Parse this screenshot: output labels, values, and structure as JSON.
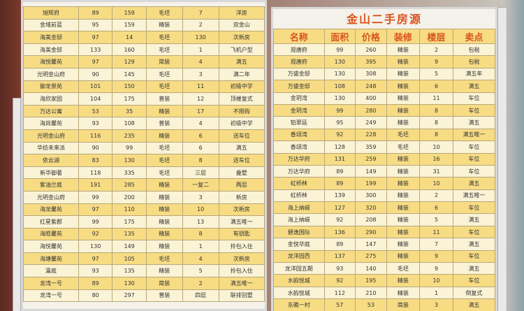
{
  "left_board": {
    "rows": [
      [
        "旭辉府",
        89,
        159,
        "毛坯",
        7,
        "洋房"
      ],
      [
        "金域前蓝",
        95,
        159,
        "精装",
        2,
        "双金山"
      ],
      [
        "海美金邸",
        97,
        14,
        "毛坯",
        130,
        "次新房"
      ],
      [
        "海美金邸",
        133,
        160,
        "毛坯",
        1,
        "飞机户型"
      ],
      [
        "海悦馨苑",
        97,
        129,
        "简装",
        4,
        "满五"
      ],
      [
        "光明金山府",
        90,
        145,
        "毛坯",
        3,
        "满二年"
      ],
      [
        "御龙景苑",
        101,
        150,
        "毛坯",
        11,
        "初级中学"
      ],
      [
        "海欣家园",
        104,
        175,
        "普装",
        12,
        "顶楼复式"
      ],
      [
        "万达公寓",
        53,
        35,
        "精装",
        17,
        "不限购"
      ],
      [
        "海尚馨苑",
        93,
        108,
        "普装",
        4,
        "初级中学"
      ],
      [
        "光明金山府",
        116,
        235,
        "精装",
        6,
        "送车位"
      ],
      [
        "华纺未来派",
        90,
        99,
        "毛坯",
        6,
        "满五"
      ],
      [
        "依云湖",
        83,
        130,
        "毛坯",
        8,
        "送车位"
      ],
      [
        "新华御著",
        118,
        335,
        "毛坯",
        "三层",
        "叠墅"
      ],
      [
        "紫油兰庭",
        191,
        285,
        "精装",
        "一复二",
        "两层"
      ],
      [
        "光明金山府",
        99,
        200,
        "精装",
        3,
        "新房"
      ],
      [
        "海龙馨苑",
        97,
        110,
        "精装",
        10,
        "次新房"
      ],
      [
        "红星紫郡",
        99,
        175,
        "精装",
        13,
        "满五唯一"
      ],
      [
        "海皓馨苑",
        92,
        135,
        "精装",
        8,
        "有钥匙"
      ],
      [
        "海悦馨苑",
        130,
        149,
        "精装",
        1,
        "拎包入住"
      ],
      [
        "海塘馨苑",
        97,
        105,
        "毛坯",
        4,
        "次新房"
      ],
      [
        "瀛庭",
        93,
        135,
        "精装",
        5,
        "拎包入住"
      ],
      [
        "龙湾一号",
        89,
        130,
        "简装",
        2,
        "满五唯一"
      ],
      [
        "龙湾一号",
        80,
        297,
        "普装",
        "四层",
        "联排别墅"
      ]
    ]
  },
  "right_board": {
    "title": "金山二手房源",
    "headers": [
      "名称",
      "面积",
      "价格",
      "装修",
      "楼层",
      "卖点"
    ],
    "rows": [
      [
        "观唐府",
        99,
        260,
        "精装",
        2,
        "包税"
      ],
      [
        "观唐府",
        130,
        395,
        "精装",
        9,
        "包税"
      ],
      [
        "万盛金邸",
        130,
        308,
        "精装",
        5,
        "满五年"
      ],
      [
        "万盛金邸",
        108,
        248,
        "精装",
        6,
        "满五"
      ],
      [
        "金玥湾",
        130,
        400,
        "精装",
        11,
        "车位"
      ],
      [
        "金玥湾",
        99,
        280,
        "精装",
        8,
        "车位"
      ],
      [
        "铂翠廷",
        95,
        249,
        "精装",
        8,
        "满五"
      ],
      [
        "香颂湾",
        92,
        228,
        "毛坯",
        8,
        "满五唯一"
      ],
      [
        "香颂湾",
        128,
        359,
        "毛坯",
        10,
        "车位"
      ],
      [
        "万达华府",
        131,
        259,
        "精装",
        16,
        "车位"
      ],
      [
        "万达华府",
        89,
        149,
        "精装",
        31,
        "车位"
      ],
      [
        "虹桥林",
        89,
        199,
        "精装",
        10,
        "满五"
      ],
      [
        "虹桥林",
        139,
        300,
        "精装",
        2,
        "满五唯一"
      ],
      [
        "海上纳缇",
        127,
        320,
        "精装",
        6,
        "车位"
      ],
      [
        "海上纳缇",
        92,
        208,
        "精装",
        5,
        "满五"
      ],
      [
        "碧逸国际",
        136,
        290,
        "精装",
        11,
        "车位"
      ],
      [
        "金悦华庭",
        89,
        147,
        "精装",
        7,
        "满五"
      ],
      [
        "龙洋园西",
        137,
        275,
        "精装",
        9,
        "车位"
      ],
      [
        "龙洋园五期",
        93,
        140,
        "毛坯",
        9,
        "满五"
      ],
      [
        "水韵悦城",
        92,
        195,
        "精装",
        10,
        "车位"
      ],
      [
        "水韵悦城",
        112,
        210,
        "精装",
        1,
        "倒复式"
      ],
      [
        "东礁一村",
        57,
        53,
        "简装",
        3,
        "满五"
      ]
    ]
  }
}
